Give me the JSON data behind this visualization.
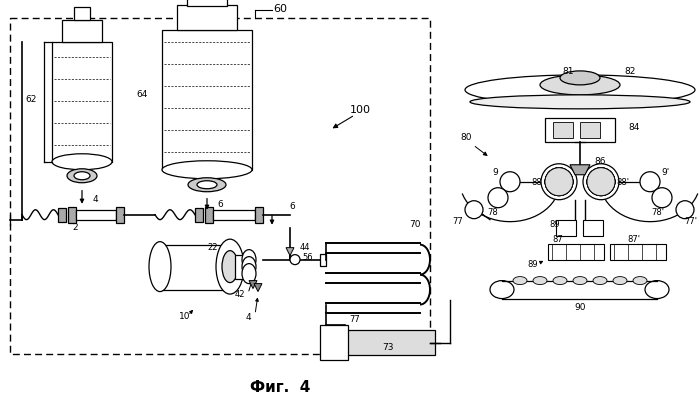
{
  "bg_color": "#ffffff",
  "title": "Фиг.  4"
}
